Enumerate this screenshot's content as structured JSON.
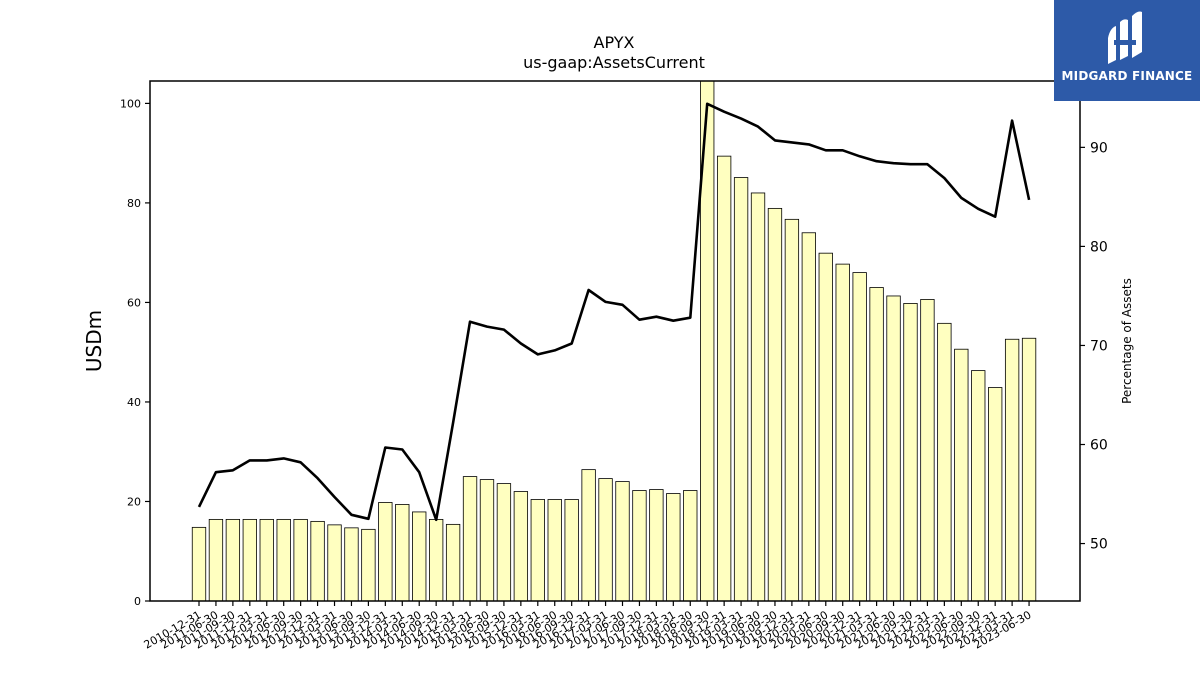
{
  "logo": {
    "text": "MIDGARD FINANCE",
    "bg_color": "#2d5aa8"
  },
  "chart_data": {
    "type": "bar+line",
    "title": "APYX",
    "subtitle": "us-gaap:AssetsCurrent",
    "ylabel": "USDm",
    "y2label": "Percentage of Assets",
    "ylim": [
      0,
      104.5
    ],
    "y2lim": [
      44.2,
      96.7
    ],
    "yticks": [
      0,
      20,
      40,
      60,
      80,
      100
    ],
    "y2ticks": [
      50,
      60,
      70,
      80,
      90
    ],
    "bar_color": "#ffffc0",
    "line_color": "#000000",
    "categories": [
      "2010-12-31",
      "2011-06-30",
      "2011-09-30",
      "2011-12-31",
      "2012-03-31",
      "2012-06-30",
      "2012-09-30",
      "2012-12-31",
      "2013-03-31",
      "2013-06-30",
      "2013-09-30",
      "2013-12-31",
      "2014-03-31",
      "2014-06-30",
      "2014-09-30",
      "2014-12-31",
      "2015-03-31",
      "2015-06-30",
      "2015-09-30",
      "2015-12-31",
      "2016-03-31",
      "2016-06-30",
      "2016-09-30",
      "2016-12-31",
      "2017-03-31",
      "2017-06-30",
      "2017-09-30",
      "2017-12-31",
      "2018-03-31",
      "2018-06-30",
      "2018-09-30",
      "2018-12-31",
      "2019-03-31",
      "2019-06-30",
      "2019-09-30",
      "2019-12-31",
      "2020-03-31",
      "2020-06-30",
      "2020-09-30",
      "2020-12-31",
      "2021-03-31",
      "2021-06-30",
      "2021-09-30",
      "2021-12-31",
      "2022-03-31",
      "2022-06-30",
      "2022-09-30",
      "2022-12-31",
      "2023-03-31",
      "2023-06-30"
    ],
    "series": [
      {
        "kind": "bar",
        "axis": "left",
        "values": [
          14.8,
          16.4,
          16.4,
          16.4,
          16.4,
          16.4,
          16.4,
          16.0,
          15.3,
          14.7,
          14.4,
          19.8,
          19.4,
          17.9,
          16.4,
          15.4,
          25.0,
          24.4,
          23.6,
          22.0,
          20.4,
          20.4,
          20.4,
          26.4,
          24.6,
          24.0,
          22.2,
          22.4,
          21.6,
          22.2,
          104.5,
          89.4,
          85.1,
          82.0,
          78.9,
          76.7,
          74.0,
          69.9,
          67.7,
          66.0,
          63.0,
          61.3,
          59.8,
          60.6,
          55.8,
          50.6,
          46.3,
          42.9,
          52.6,
          52.8
        ]
      },
      {
        "kind": "line",
        "axis": "right",
        "values": [
          53.7,
          57.2,
          57.4,
          58.4,
          58.4,
          58.6,
          58.2,
          56.6,
          54.7,
          52.9,
          52.5,
          59.7,
          59.5,
          57.2,
          52.4,
          62.2,
          72.4,
          71.9,
          71.6,
          70.2,
          69.1,
          69.5,
          70.2,
          75.6,
          74.4,
          74.1,
          72.6,
          72.9,
          72.5,
          72.8,
          94.4,
          93.6,
          92.9,
          92.1,
          90.7,
          90.5,
          90.3,
          89.7,
          89.7,
          89.1,
          88.6,
          88.4,
          88.3,
          88.3,
          86.9,
          84.9,
          83.8,
          83.0,
          92.7,
          84.7
        ]
      }
    ]
  }
}
